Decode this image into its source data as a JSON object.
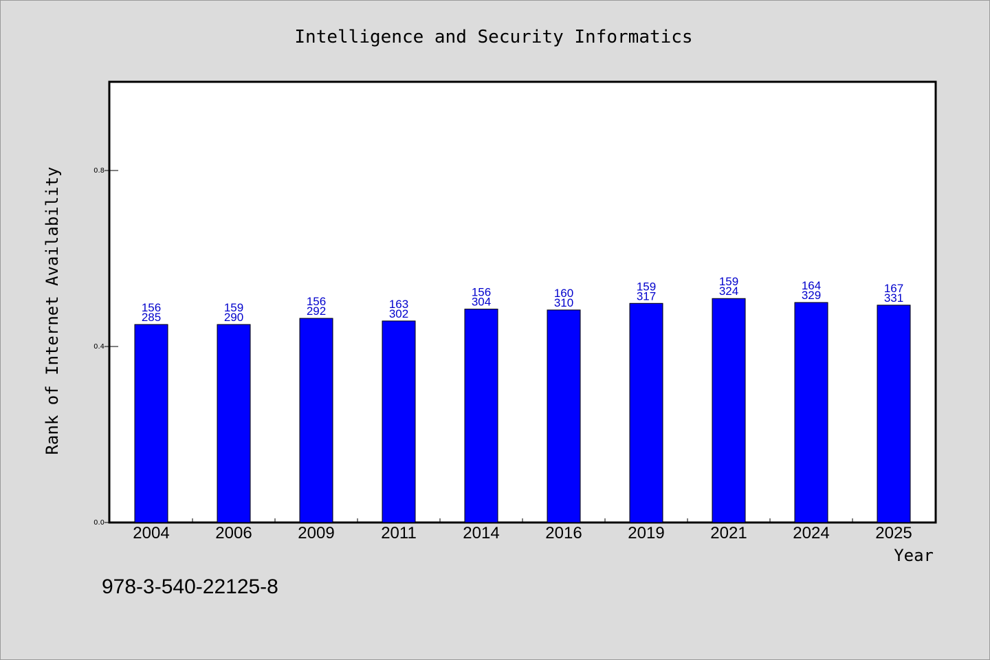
{
  "chart_data": {
    "type": "bar",
    "title": "Intelligence and Security Informatics",
    "xlabel": "Year",
    "ylabel": "Rank of Internet Availability",
    "categories": [
      "2004",
      "2006",
      "2009",
      "2011",
      "2014",
      "2016",
      "2019",
      "2021",
      "2024",
      "2025"
    ],
    "values": [
      0.45,
      0.45,
      0.464,
      0.458,
      0.485,
      0.483,
      0.498,
      0.509,
      0.5,
      0.494
    ],
    "labels_top": [
      "156",
      "159",
      "156",
      "163",
      "156",
      "160",
      "159",
      "159",
      "164",
      "167"
    ],
    "labels_bottom": [
      "285",
      "290",
      "292",
      "302",
      "304",
      "310",
      "317",
      "324",
      "329",
      "331"
    ],
    "ylim": [
      0,
      1.0
    ],
    "yticks": [
      0.0,
      0.4,
      0.8
    ],
    "ytick_labels": [
      "0.0",
      "0.4",
      "0.8"
    ],
    "grid": false,
    "bar_color": "#0000ff",
    "label_color": "#0000cc",
    "background": "#dcdcdc",
    "plot_background": "#ffffff"
  },
  "footnote": "978-3-540-22125-8"
}
